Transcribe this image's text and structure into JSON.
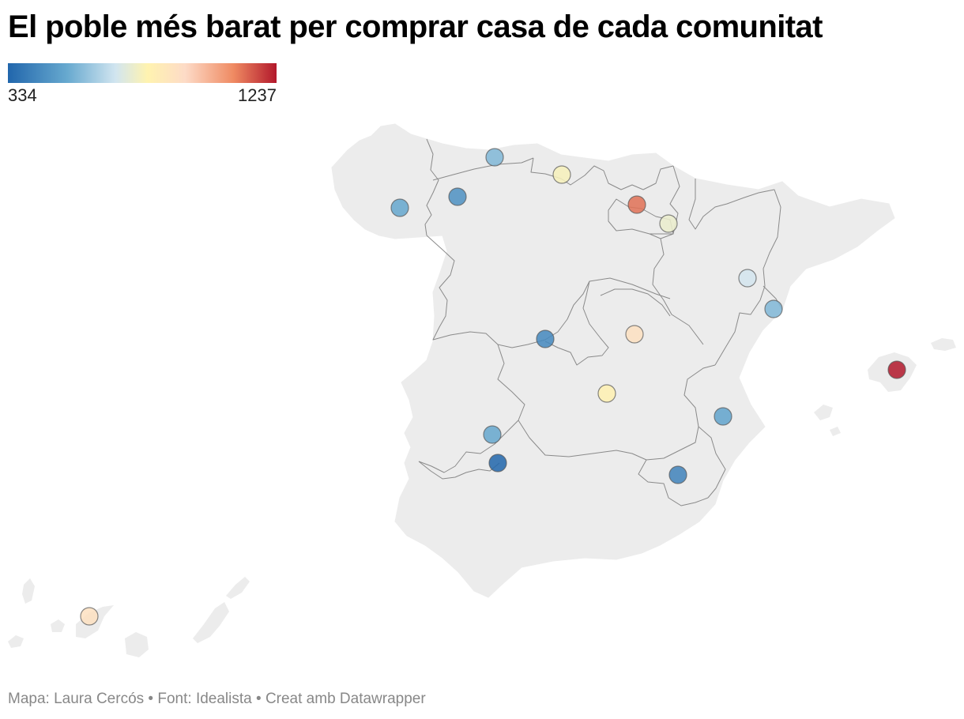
{
  "title": "El poble més barat per comprar casa de cada comunitat",
  "legend": {
    "min": "334",
    "max": "1237"
  },
  "footer": {
    "author": "Mapa: Laura Cercós",
    "source": "Font: Idealista",
    "tool": "Creat amb Datawrapper",
    "separator": " • "
  },
  "colors": {
    "land": "#ececec",
    "border": "#8a8a8a",
    "marker_stroke": "#555555",
    "scale": [
      "#2166ac",
      "#67a9cf",
      "#d1e5f0",
      "#fff3b0",
      "#fddbc7",
      "#ef8a62",
      "#b2182b"
    ]
  },
  "markers": [
    {
      "region": "Galícia",
      "value": 480
    },
    {
      "region": "Astúries",
      "value": 520
    },
    {
      "region": "Castella i Lleó",
      "value": 430
    },
    {
      "region": "Cantàbria",
      "value": 760
    },
    {
      "region": "País Basc",
      "value": 1120
    },
    {
      "region": "La Rioja",
      "value": 720
    },
    {
      "region": "Catalunya",
      "value": 640
    },
    {
      "region": "Aragó",
      "value": 520
    },
    {
      "region": "Comunitat de Madrid",
      "value": 900
    },
    {
      "region": "Castella-la Manxa",
      "value": 800
    },
    {
      "region": "Illes Balears",
      "value": 1237
    },
    {
      "region": "Extremadura",
      "value": 410
    },
    {
      "region": "Comunitat Valenciana",
      "value": 470
    },
    {
      "region": "Extremadura (sud)",
      "value": 480
    },
    {
      "region": "Andalusia",
      "value": 334
    },
    {
      "region": "Regió de Múrcia",
      "value": 400
    },
    {
      "region": "Canàries",
      "value": 900
    }
  ]
}
